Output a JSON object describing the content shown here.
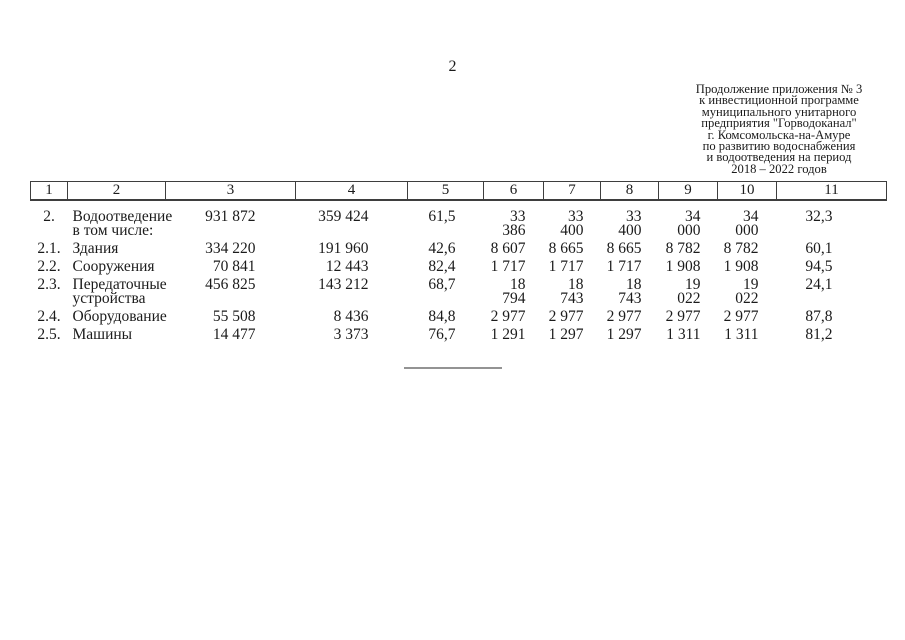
{
  "page": {
    "number": "2"
  },
  "appendix_header": {
    "lines": [
      "Продолжение приложения № 3",
      "к инвестиционной программе",
      "муниципального унитарного",
      "предприятия \"Горводоканал\"",
      "г. Комсомольска-на-Амуре",
      "по развитию водоснабжения",
      "и водоотведения на период",
      "2018 – 2022 годов"
    ]
  },
  "table": {
    "columns": [
      "1",
      "2",
      "3",
      "4",
      "5",
      "6",
      "7",
      "8",
      "9",
      "10",
      "11"
    ],
    "rows": [
      {
        "num": "2.",
        "name": "Водоотведение",
        "sub": "в том числе:",
        "values": [
          "931 872",
          "359 424",
          "61,5",
          "33 386",
          "33 400",
          "33 400",
          "34 000",
          "34 000",
          "32,3"
        ]
      },
      {
        "num": "2.1.",
        "name": "Здания",
        "values": [
          "334 220",
          "191 960",
          "42,6",
          "8 607",
          "8 665",
          "8 665",
          "8 782",
          "8 782",
          "60,1"
        ]
      },
      {
        "num": "2.2.",
        "name": "Сооружения",
        "values": [
          "70 841",
          "12 443",
          "82,4",
          "1 717",
          "1 717",
          "1 717",
          "1 908",
          "1 908",
          "94,5"
        ]
      },
      {
        "num": "2.3.",
        "name": "Передаточные устройства",
        "values": [
          "456 825",
          "143 212",
          "68,7",
          "18 794",
          "18 743",
          "18 743",
          "19 022",
          "19 022",
          "24,1"
        ]
      },
      {
        "num": "2.4.",
        "name": "Оборудование",
        "values": [
          "55 508",
          "8 436",
          "84,8",
          "2 977",
          "2 977",
          "2 977",
          "2 977",
          "2 977",
          "87,8"
        ]
      },
      {
        "num": "2.5.",
        "name": "Машины",
        "values": [
          "14 477",
          "3 373",
          "76,7",
          "1 291",
          "1 297",
          "1 297",
          "1 311",
          "1 311",
          "81,2"
        ]
      }
    ]
  }
}
